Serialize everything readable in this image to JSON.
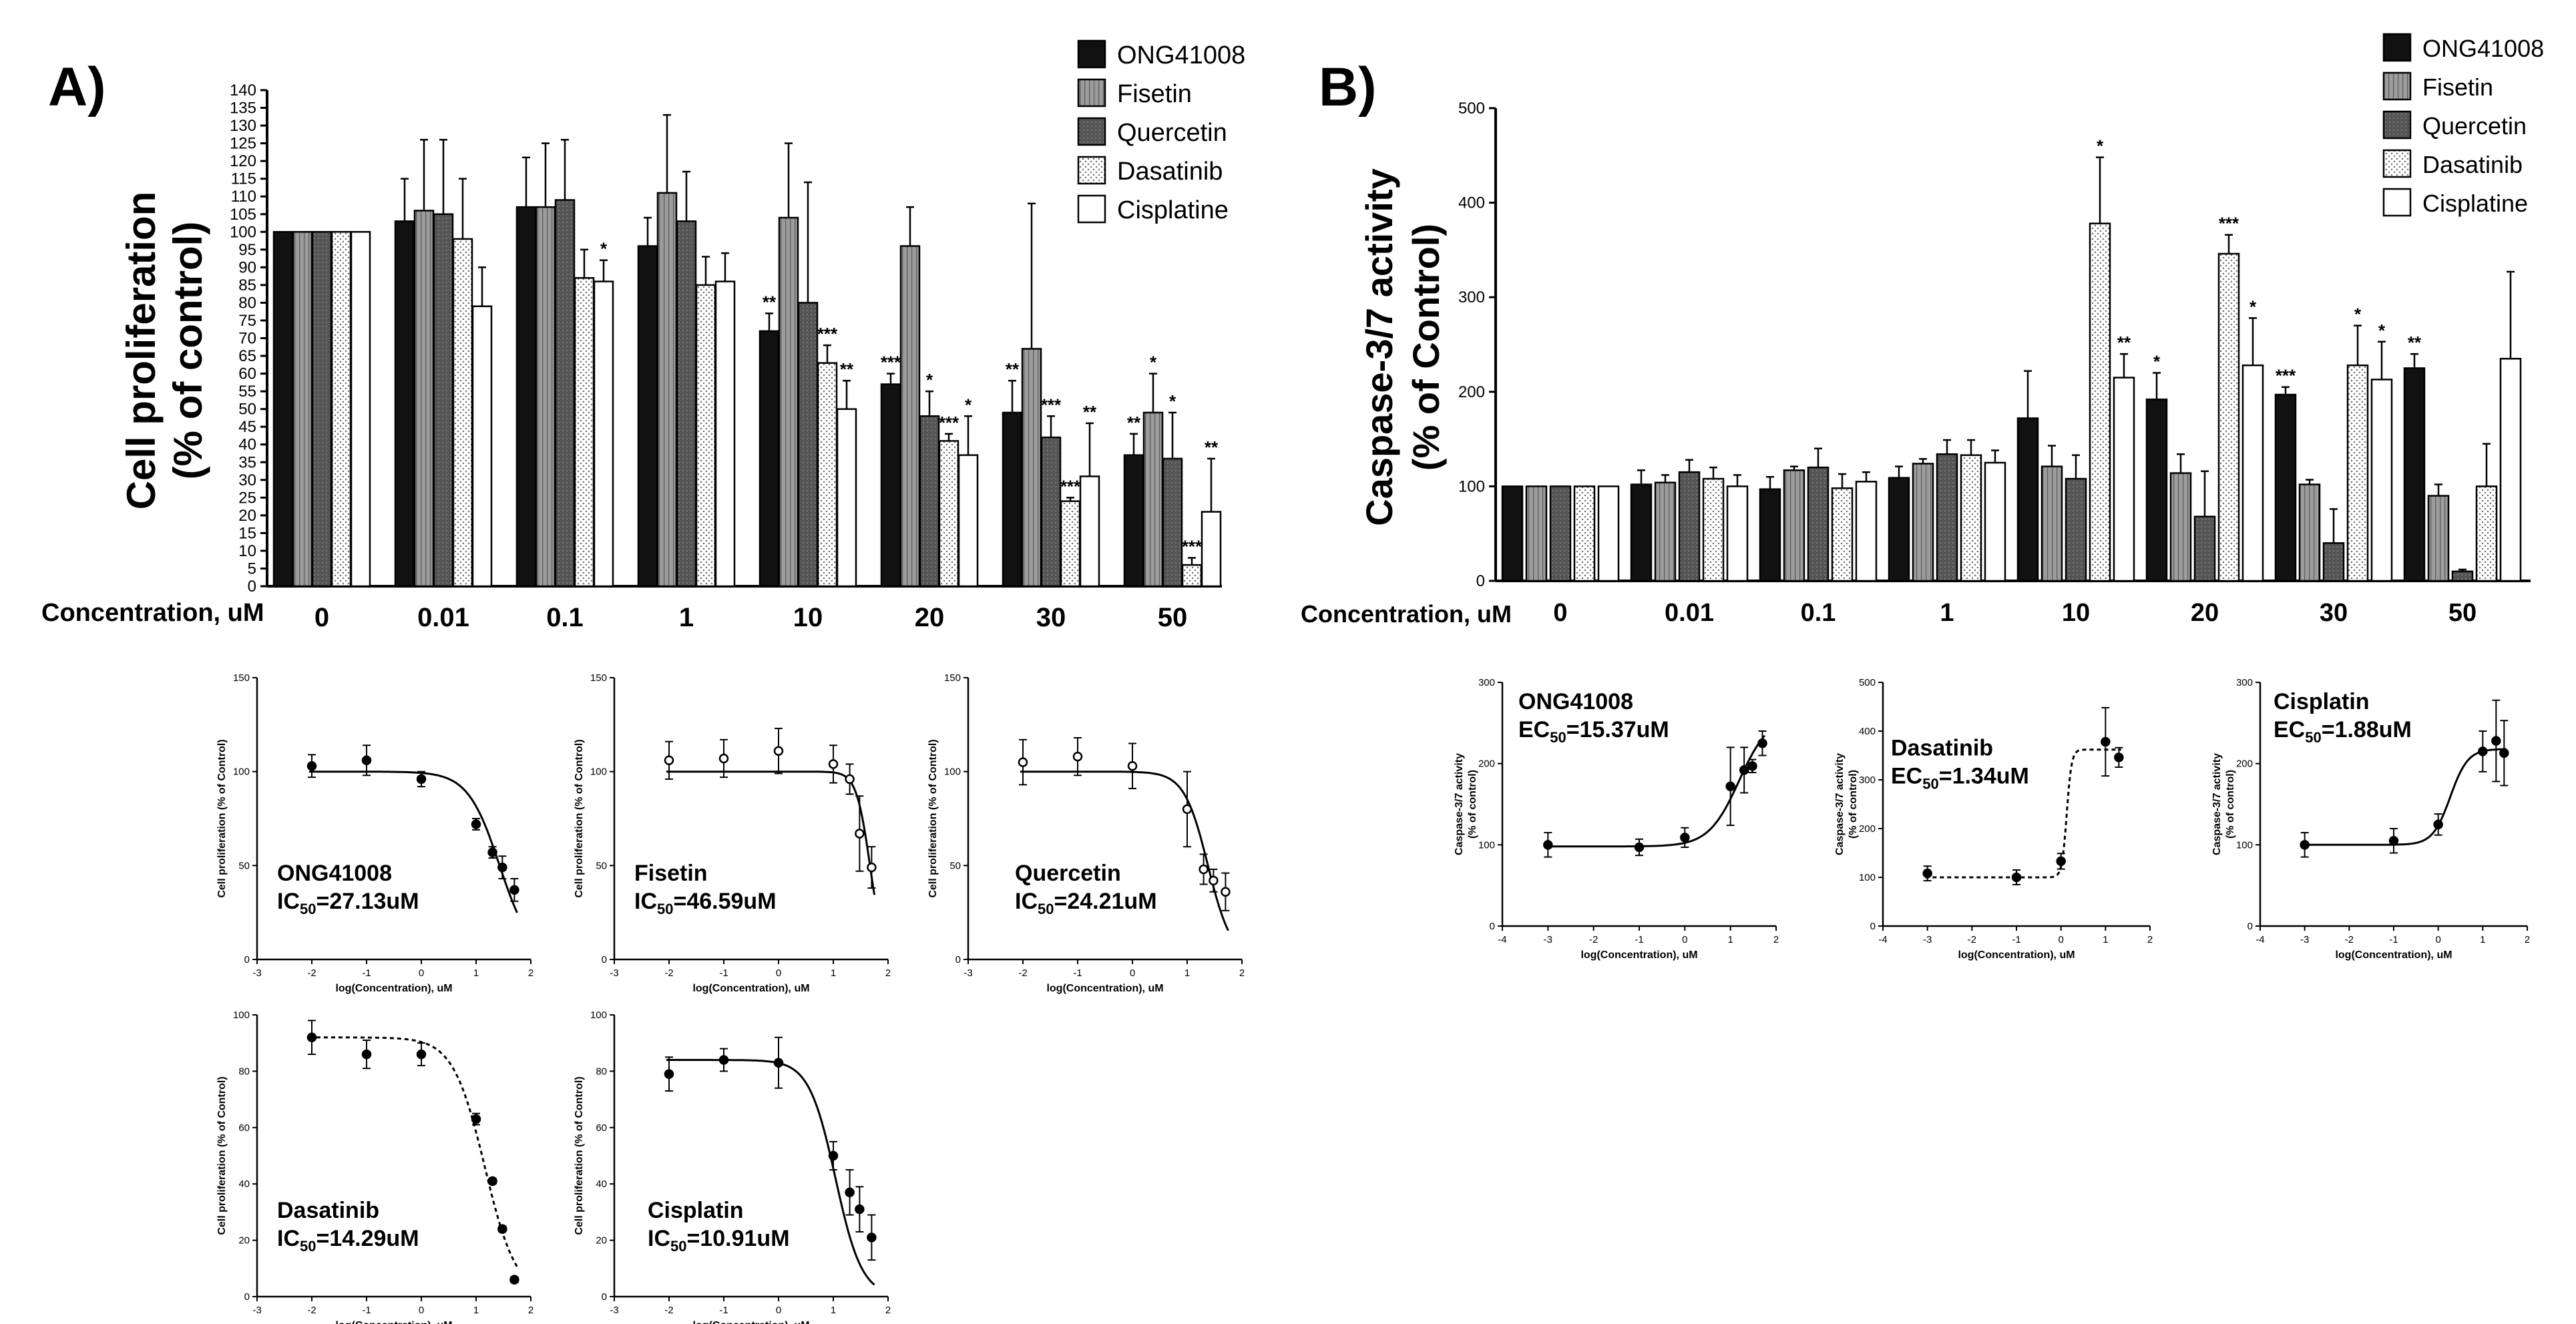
{
  "panels": {
    "a": {
      "label": "A)",
      "ylabel_line1": "Cell proliferation",
      "ylabel_line2": "(% of control)",
      "xlabel": "Concentration, uM"
    },
    "b": {
      "label": "B)",
      "ylabel_line1": "Caspase-3/7 activity",
      "ylabel_line2": "(% of Control)",
      "xlabel": "Concentration, uM"
    }
  },
  "chart_data": [
    {
      "id": "a",
      "type": "bar",
      "title": "",
      "xlabel": "Concentration, uM",
      "ylabel": "Cell proliferation (% of control)",
      "ylim": [
        0,
        140
      ],
      "yticks": [
        0,
        5,
        10,
        15,
        20,
        25,
        30,
        35,
        40,
        45,
        50,
        55,
        60,
        65,
        70,
        75,
        80,
        85,
        90,
        95,
        100,
        105,
        110,
        115,
        120,
        125,
        130,
        135,
        140
      ],
      "categories": [
        "0",
        "0.01",
        "0.1",
        "1",
        "10",
        "20",
        "30",
        "50"
      ],
      "legend": "top-right",
      "series": [
        {
          "name": "ONG41008",
          "style": "black",
          "values": [
            100,
            103,
            107,
            96,
            72,
            57,
            49,
            37
          ],
          "errors": [
            0,
            12,
            14,
            8,
            5,
            3,
            9,
            6
          ],
          "stars": [
            "",
            "",
            "",
            "",
            "**",
            "***",
            "**",
            "**"
          ]
        },
        {
          "name": "Fisetin",
          "style": "grey",
          "values": [
            100,
            106,
            107,
            111,
            104,
            96,
            67,
            49
          ],
          "errors": [
            0,
            20,
            18,
            22,
            21,
            11,
            41,
            11
          ],
          "stars": [
            "",
            "",
            "",
            "",
            "",
            "",
            "",
            "*"
          ]
        },
        {
          "name": "Quercetin",
          "style": "darkgrey",
          "values": [
            100,
            105,
            109,
            103,
            80,
            48,
            42,
            36
          ],
          "errors": [
            0,
            21,
            17,
            14,
            34,
            7,
            6,
            13
          ],
          "stars": [
            "",
            "",
            "",
            "",
            "",
            "*",
            "***",
            "*"
          ]
        },
        {
          "name": "Dasatinib",
          "style": "dotted",
          "values": [
            100,
            98,
            87,
            85,
            63,
            41,
            24,
            6
          ],
          "errors": [
            0,
            17,
            8,
            8,
            5,
            2,
            1,
            2
          ],
          "stars": [
            "",
            "",
            "",
            "",
            "***",
            "***",
            "***",
            "***"
          ]
        },
        {
          "name": "Cisplatine",
          "style": "white",
          "values": [
            100,
            79,
            86,
            86,
            50,
            37,
            31,
            21
          ],
          "errors": [
            0,
            11,
            6,
            8,
            8,
            11,
            15,
            15
          ],
          "stars": [
            "",
            "",
            "*",
            "",
            "**",
            "*",
            "**",
            "**"
          ]
        }
      ]
    },
    {
      "id": "b",
      "type": "bar",
      "title": "",
      "xlabel": "Concentration, uM",
      "ylabel": "Caspase-3/7 activity (% of Control)",
      "ylim": [
        0,
        500
      ],
      "yticks": [
        0,
        100,
        200,
        300,
        400,
        500
      ],
      "categories": [
        "0",
        "0.01",
        "0.1",
        "1",
        "10",
        "20",
        "30",
        "50"
      ],
      "legend": "top-right",
      "series": [
        {
          "name": "ONG41008",
          "style": "black",
          "values": [
            100,
            102,
            97,
            109,
            172,
            192,
            197,
            225
          ],
          "errors": [
            0,
            15,
            13,
            12,
            50,
            28,
            8,
            15
          ],
          "stars": [
            "",
            "",
            "",
            "",
            "",
            "*",
            "***",
            "**"
          ]
        },
        {
          "name": "Fisetin",
          "style": "grey",
          "values": [
            100,
            104,
            117,
            124,
            121,
            114,
            102,
            90
          ],
          "errors": [
            0,
            8,
            4,
            5,
            22,
            20,
            5,
            12
          ],
          "stars": [
            "",
            "",
            "",
            "",
            "",
            "",
            "",
            ""
          ]
        },
        {
          "name": "Quercetin",
          "style": "darkgrey",
          "values": [
            100,
            115,
            120,
            134,
            108,
            68,
            40,
            10
          ],
          "errors": [
            0,
            13,
            20,
            15,
            25,
            48,
            36,
            2
          ],
          "stars": [
            "",
            "",
            "",
            "",
            "",
            "",
            "",
            ""
          ]
        },
        {
          "name": "Dasatinib",
          "style": "dotted",
          "values": [
            100,
            108,
            98,
            133,
            378,
            346,
            228,
            100
          ],
          "errors": [
            0,
            12,
            15,
            16,
            70,
            20,
            42,
            45
          ],
          "stars": [
            "",
            "",
            "",
            "",
            "*",
            "***",
            "*",
            ""
          ]
        },
        {
          "name": "Cisplatine",
          "style": "white",
          "values": [
            100,
            100,
            105,
            125,
            215,
            228,
            213,
            235
          ],
          "errors": [
            0,
            12,
            10,
            13,
            25,
            50,
            40,
            92
          ],
          "stars": [
            "",
            "",
            "",
            "",
            "**",
            "*",
            "*",
            ""
          ]
        }
      ]
    },
    {
      "id": "a1",
      "type": "scatter",
      "dashed": false,
      "marker": "filled",
      "xlabel": "log(Concentration), uM",
      "ylabel": "Cell proliferation (% of Control)",
      "xlim": [
        -3,
        2
      ],
      "xticks": [
        -3,
        -2,
        -1,
        0,
        1,
        2
      ],
      "ylim": [
        0,
        150
      ],
      "yticks": [
        0,
        50,
        100,
        150
      ],
      "drug": "ONG41008",
      "metric_prefix": "IC",
      "metric_sub": "50",
      "metric_value": "=27.13uM",
      "x": [
        -2,
        -1,
        0,
        1,
        1.3,
        1.48,
        1.7
      ],
      "y": [
        103,
        106,
        96,
        72,
        57,
        49,
        37
      ],
      "errors": [
        6,
        8,
        4,
        3,
        3,
        6,
        6
      ],
      "curve": {
        "top": 100,
        "bottom": 0,
        "logEC50": 1.43,
        "hill": -1.5
      }
    },
    {
      "id": "a2",
      "type": "scatter",
      "dashed": false,
      "marker": "open",
      "xlabel": "log(Concentration), uM",
      "ylabel": "Cell proliferation (% of Control)",
      "xlim": [
        -3,
        2
      ],
      "xticks": [
        -3,
        -2,
        -1,
        0,
        1,
        2
      ],
      "ylim": [
        0,
        150
      ],
      "yticks": [
        0,
        50,
        100,
        150
      ],
      "drug": "Fisetin",
      "metric_prefix": "IC",
      "metric_sub": "50",
      "metric_value": "=46.59uM",
      "x": [
        -2,
        -1,
        0,
        1,
        1.3,
        1.48,
        1.7
      ],
      "y": [
        106,
        107,
        111,
        104,
        96,
        67,
        49
      ],
      "errors": [
        10,
        10,
        12,
        10,
        8,
        20,
        11
      ],
      "curve": {
        "top": 100,
        "bottom": 0,
        "logEC50": 1.67,
        "hill": -3.5
      }
    },
    {
      "id": "a3",
      "type": "scatter",
      "dashed": false,
      "marker": "open",
      "xlabel": "log(Concentration), uM",
      "ylabel": "Cell proliferation (% of Control)",
      "xlim": [
        -3,
        2
      ],
      "xticks": [
        -3,
        -2,
        -1,
        0,
        1,
        2
      ],
      "ylim": [
        0,
        150
      ],
      "yticks": [
        0,
        50,
        100,
        150
      ],
      "drug": "Quercetin",
      "metric_prefix": "IC",
      "metric_sub": "50",
      "metric_value": "=24.21uM",
      "x": [
        -2,
        -1,
        0,
        1,
        1.3,
        1.48,
        1.7
      ],
      "y": [
        105,
        108,
        103,
        80,
        48,
        42,
        36
      ],
      "errors": [
        12,
        10,
        12,
        20,
        8,
        6,
        10
      ],
      "curve": {
        "top": 100,
        "bottom": 0,
        "logEC50": 1.38,
        "hill": -2.0
      }
    },
    {
      "id": "a4",
      "type": "scatter",
      "dashed": true,
      "marker": "filled",
      "xlabel": "log(Concentration), uM",
      "ylabel": "Cell proliferation (% of Control)",
      "xlim": [
        -3,
        2
      ],
      "xticks": [
        -3,
        -2,
        -1,
        0,
        1,
        2
      ],
      "ylim": [
        0,
        100
      ],
      "yticks": [
        0,
        20,
        40,
        60,
        80,
        100
      ],
      "drug": "Dasatinib",
      "metric_prefix": "IC",
      "metric_sub": "50",
      "metric_value": "=14.29uM",
      "x": [
        -2,
        -1,
        0,
        1,
        1.3,
        1.48,
        1.7
      ],
      "y": [
        92,
        86,
        86,
        63,
        41,
        24,
        6
      ],
      "errors": [
        6,
        5,
        4,
        2,
        1,
        1,
        1
      ],
      "curve": {
        "top": 92,
        "bottom": 0,
        "logEC50": 1.16,
        "hill": -1.5
      }
    },
    {
      "id": "a5",
      "type": "scatter",
      "dashed": false,
      "marker": "filled",
      "xlabel": "log(Concentration), uM",
      "ylabel": "Cell proliferation (% of Control)",
      "xlim": [
        -3,
        2
      ],
      "xticks": [
        -3,
        -2,
        -1,
        0,
        1,
        2
      ],
      "ylim": [
        0,
        100
      ],
      "yticks": [
        0,
        20,
        40,
        60,
        80,
        100
      ],
      "drug": "Cisplatin",
      "metric_prefix": "IC",
      "metric_sub": "50",
      "metric_value": "=10.91uM",
      "x": [
        -2,
        -1,
        0,
        1,
        1.3,
        1.48,
        1.7
      ],
      "y": [
        79,
        84,
        83,
        50,
        37,
        31,
        21
      ],
      "errors": [
        6,
        4,
        9,
        5,
        8,
        8,
        8
      ],
      "curve": {
        "top": 84,
        "bottom": 0,
        "logEC50": 1.04,
        "hill": -1.8
      }
    },
    {
      "id": "b1",
      "type": "scatter",
      "dashed": false,
      "marker": "filled",
      "xlabel": "log(Concentration), uM",
      "ylabel": "Caspase-3/7 activity (% of control)",
      "xlim": [
        -4,
        2
      ],
      "xticks": [
        -4,
        -3,
        -2,
        -1,
        0,
        1,
        2
      ],
      "ylim": [
        0,
        300
      ],
      "yticks": [
        0,
        100,
        200,
        300
      ],
      "drug": "ONG41008",
      "metric_prefix": "EC",
      "metric_sub": "50",
      "metric_value": "=15.37uM",
      "x": [
        -3,
        -1,
        0,
        1,
        1.3,
        1.48,
        1.7
      ],
      "y": [
        100,
        97,
        109,
        172,
        192,
        197,
        225
      ],
      "errors": [
        15,
        10,
        12,
        48,
        28,
        8,
        15
      ],
      "curve": {
        "top": 260,
        "bottom": 98,
        "logEC50": 1.19,
        "hill": 1.3
      }
    },
    {
      "id": "b2",
      "type": "scatter",
      "dashed": true,
      "marker": "filled",
      "xlabel": "log(Concentration), uM",
      "ylabel": "Caspase-3/7 activity (% of control)",
      "xlim": [
        -4,
        2
      ],
      "xticks": [
        -4,
        -3,
        -2,
        -1,
        0,
        1,
        2
      ],
      "ylim": [
        0,
        500
      ],
      "yticks": [
        0,
        100,
        200,
        300,
        400,
        500
      ],
      "drug": "Dasatinib",
      "metric_prefix": "EC",
      "metric_sub": "50",
      "metric_value": "=1.34uM",
      "x": [
        -3,
        -1,
        0,
        1,
        1.3
      ],
      "y": [
        108,
        100,
        133,
        378,
        346
      ],
      "errors": [
        15,
        15,
        16,
        70,
        20
      ],
      "curve": {
        "top": 362,
        "bottom": 100,
        "logEC50": 0.13,
        "hill": 8
      }
    },
    {
      "id": "b3",
      "type": "scatter",
      "dashed": false,
      "marker": "filled",
      "xlabel": "log(Concentration), uM",
      "ylabel": "Caspase-3/7 activity (% of control)",
      "xlim": [
        -4,
        2
      ],
      "xticks": [
        -4,
        -3,
        -2,
        -1,
        0,
        1,
        2
      ],
      "ylim": [
        0,
        300
      ],
      "yticks": [
        0,
        100,
        200,
        300
      ],
      "drug": "Cisplatin",
      "metric_prefix": "EC",
      "metric_sub": "50",
      "metric_value": "=1.88uM",
      "x": [
        -3,
        -1,
        0,
        1,
        1.3,
        1.48
      ],
      "y": [
        100,
        105,
        125,
        215,
        228,
        213
      ],
      "errors": [
        15,
        15,
        13,
        25,
        50,
        40
      ],
      "curve": {
        "top": 218,
        "bottom": 100,
        "logEC50": 0.27,
        "hill": 2.2
      }
    }
  ]
}
